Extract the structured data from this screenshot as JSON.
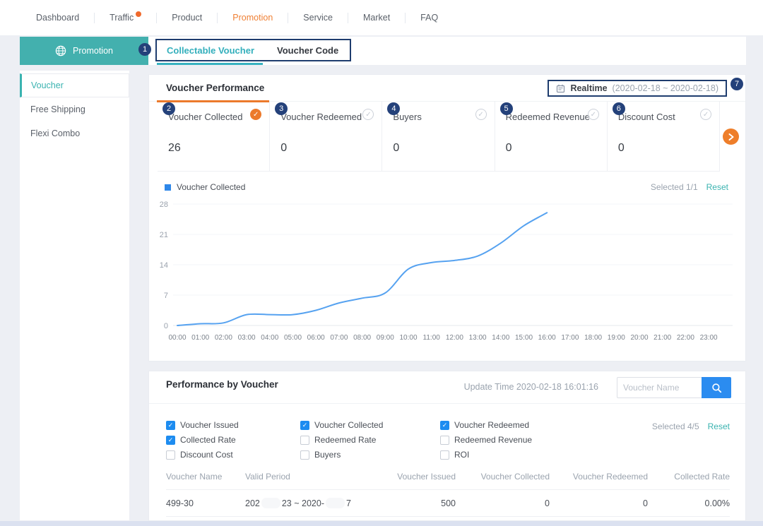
{
  "topnav": {
    "items": [
      {
        "label": "Dashboard",
        "active": false,
        "dot": false
      },
      {
        "label": "Traffic",
        "active": false,
        "dot": true
      },
      {
        "label": "Product",
        "active": false,
        "dot": false
      },
      {
        "label": "Promotion",
        "active": true,
        "dot": false
      },
      {
        "label": "Service",
        "active": false,
        "dot": false
      },
      {
        "label": "Market",
        "active": false,
        "dot": false
      },
      {
        "label": "FAQ",
        "active": false,
        "dot": false
      }
    ]
  },
  "sidebar": {
    "header": {
      "label": "Promotion"
    },
    "items": [
      {
        "label": "Voucher",
        "active": true
      },
      {
        "label": "Free Shipping",
        "active": false
      },
      {
        "label": "Flexi Combo",
        "active": false
      }
    ]
  },
  "tabs": {
    "badge": "1",
    "items": [
      {
        "label": "Collectable Voucher",
        "active": true
      },
      {
        "label": "Voucher Code",
        "active": false
      }
    ]
  },
  "performance": {
    "title": "Voucher Performance",
    "realtime": {
      "label": "Realtime",
      "range": "(2020-02-18 ~ 2020-02-18)",
      "badge": "7"
    },
    "metrics": [
      {
        "badge": "2",
        "label": "Voucher Collected",
        "value": "26",
        "selected": true
      },
      {
        "badge": "3",
        "label": "Voucher Redeemed",
        "value": "0",
        "selected": false
      },
      {
        "badge": "4",
        "label": "Buyers",
        "value": "0",
        "selected": false
      },
      {
        "badge": "5",
        "label": "Redeemed Revenue",
        "value": "0",
        "selected": false
      },
      {
        "badge": "6",
        "label": "Discount Cost",
        "value": "0",
        "selected": false
      }
    ],
    "legend": {
      "label": "Voucher Collected",
      "selected_text": "Selected 1/1",
      "reset_label": "Reset"
    }
  },
  "chart_data": {
    "type": "line",
    "title": "Voucher Collected",
    "x_labels": [
      "00:00",
      "01:00",
      "02:00",
      "03:00",
      "04:00",
      "05:00",
      "06:00",
      "07:00",
      "08:00",
      "09:00",
      "10:00",
      "11:00",
      "12:00",
      "13:00",
      "14:00",
      "15:00",
      "16:00",
      "17:00",
      "18:00",
      "19:00",
      "20:00",
      "21:00",
      "22:00",
      "23:00"
    ],
    "series": [
      {
        "name": "Voucher Collected",
        "color": "#56a2f0",
        "x": [
          0,
          1,
          2,
          3,
          4,
          5,
          6,
          7,
          8,
          9,
          10,
          11,
          12,
          13,
          14,
          15,
          16
        ],
        "values": [
          0,
          0.4,
          0.6,
          2.5,
          2.5,
          2.5,
          3.5,
          5.2,
          6.3,
          7.5,
          13,
          14.5,
          15,
          16,
          19,
          23,
          26
        ]
      }
    ],
    "ylim": [
      0,
      28
    ],
    "yticks": [
      0,
      7,
      14,
      21,
      28
    ],
    "grid": true,
    "legend_position": "top-left",
    "note": "cumulative vouchers collected per hour; data ends at 16:00"
  },
  "by_voucher": {
    "title": "Performance by Voucher",
    "update_time": "Update Time 2020-02-18 16:01:16",
    "search": {
      "placeholder": "Voucher Name"
    },
    "filters": [
      {
        "label": "Voucher Issued",
        "checked": true
      },
      {
        "label": "Voucher Collected",
        "checked": true
      },
      {
        "label": "Voucher Redeemed",
        "checked": true
      },
      {
        "label": "Collected Rate",
        "checked": true
      },
      {
        "label": "Redeemed Rate",
        "checked": false
      },
      {
        "label": "Redeemed Revenue",
        "checked": false
      },
      {
        "label": "Discount Cost",
        "checked": false
      },
      {
        "label": "Buyers",
        "checked": false
      },
      {
        "label": "ROI",
        "checked": false
      }
    ],
    "selected_text": "Selected 4/5",
    "reset_label": "Reset",
    "table": {
      "columns": [
        "Voucher Name",
        "Valid Period",
        "Voucher Issued",
        "Voucher Collected",
        "Voucher Redeemed",
        "Collected Rate"
      ],
      "rows": [
        {
          "cells": [
            "499-30",
            {
              "parts": [
                "202",
                "23 ~ 2020-",
                "7"
              ]
            },
            "500",
            "0",
            "0",
            "0.00%"
          ]
        }
      ]
    }
  },
  "colors": {
    "brand_teal": "#3ab3b0",
    "tab_teal": "#33afbc",
    "accent_orange": "#ec7a2c",
    "nav_active_orange": "#ef8035",
    "notification_dot": "#f06a2d",
    "navy_badge": "#24417a",
    "chart_line_blue": "#56a2f0",
    "legend_blue": "#2e87e9",
    "checkbox_blue": "#1d8cf0",
    "search_button_blue": "#2b8cf0"
  }
}
